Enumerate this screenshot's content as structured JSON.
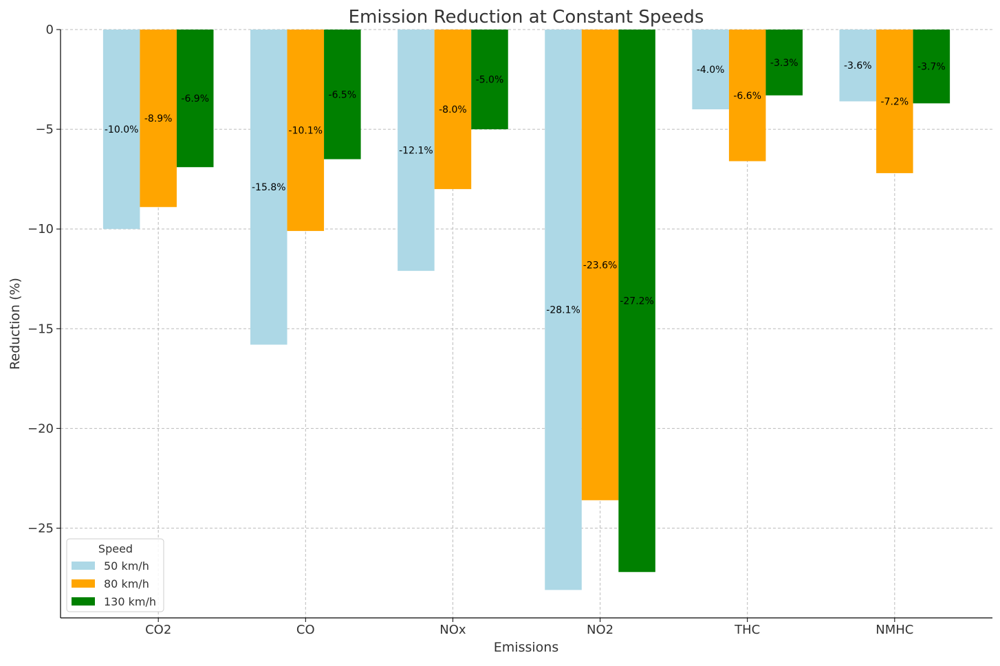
{
  "chart_data": {
    "type": "bar",
    "title": "Emission Reduction at Constant Speeds",
    "xlabel": "Emissions",
    "ylabel": "Reduction (%)",
    "categories": [
      "CO2",
      "CO",
      "NOx",
      "NO2",
      "THC",
      "NMHC"
    ],
    "series": [
      {
        "name": "50 km/h",
        "color": "#add8e6",
        "values": [
          -10.0,
          -15.8,
          -12.1,
          -28.1,
          -4.0,
          -3.6
        ]
      },
      {
        "name": "80 km/h",
        "color": "#ffa500",
        "values": [
          -8.9,
          -10.1,
          -8.0,
          -23.6,
          -6.6,
          -7.2
        ]
      },
      {
        "name": "130 km/h",
        "color": "#008000",
        "values": [
          -6.9,
          -6.5,
          -5.0,
          -27.2,
          -3.3,
          -3.7
        ]
      }
    ],
    "data_labels": [
      [
        "-10.0%",
        "-15.8%",
        "-12.1%",
        "-28.1%",
        "-4.0%",
        "-3.6%"
      ],
      [
        "-8.9%",
        "-10.1%",
        "-8.0%",
        "-23.6%",
        "-6.6%",
        "-7.2%"
      ],
      [
        "-6.9%",
        "-6.5%",
        "-5.0%",
        "-27.2%",
        "-3.3%",
        "-3.7%"
      ]
    ],
    "yticks": [
      0,
      -5,
      -10,
      -15,
      -20,
      -25
    ],
    "ytick_labels": [
      "0",
      "−5",
      "−10",
      "−15",
      "−20",
      "−25"
    ],
    "ylim": [
      -29.5,
      0
    ],
    "grid": true,
    "legend": {
      "title": "Speed",
      "placement": "bottom-left"
    }
  }
}
